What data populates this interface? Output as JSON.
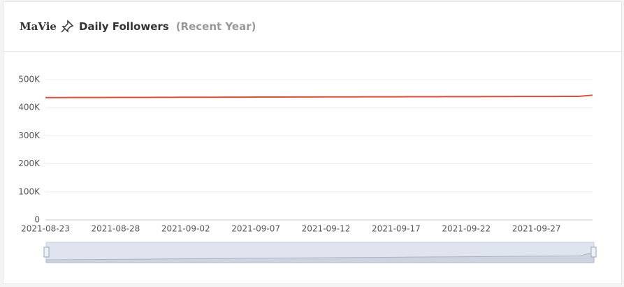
{
  "header": {
    "name": "MaVie",
    "title": "Daily Followers",
    "subtitle": "(Recent Year)"
  },
  "chart_data": {
    "type": "line",
    "categories": [
      "2021-08-23",
      null,
      null,
      null,
      null,
      "2021-08-28",
      null,
      null,
      null,
      null,
      "2021-09-02",
      null,
      null,
      null,
      null,
      "2021-09-07",
      null,
      null,
      null,
      null,
      "2021-09-12",
      null,
      null,
      null,
      null,
      "2021-09-17",
      null,
      null,
      null,
      null,
      "2021-09-22",
      null,
      null,
      null,
      null,
      "2021-09-27",
      null,
      null,
      null,
      null
    ],
    "series": [
      {
        "name": null,
        "color": "#d9513c",
        "values": [
          436000,
          436000,
          436200,
          436300,
          436400,
          436500,
          436600,
          436700,
          436900,
          437000,
          437100,
          437200,
          437300,
          437400,
          437600,
          437700,
          437800,
          437900,
          438000,
          438100,
          438300,
          438400,
          438500,
          438600,
          438700,
          438800,
          439000,
          439100,
          439200,
          439300,
          439400,
          439500,
          439700,
          439800,
          439900,
          440000,
          440100,
          440200,
          440300,
          444500
        ]
      }
    ],
    "ylim": [
      0,
      500000
    ],
    "yticks": [
      0,
      {
        "value": 100000,
        "label": "100K"
      },
      {
        "value": 200000,
        "label": "200K"
      },
      {
        "value": 300000,
        "label": "300K"
      },
      {
        "value": 400000,
        "label": "400K"
      },
      {
        "value": 500000,
        "label": "500K"
      }
    ],
    "grid": true
  }
}
